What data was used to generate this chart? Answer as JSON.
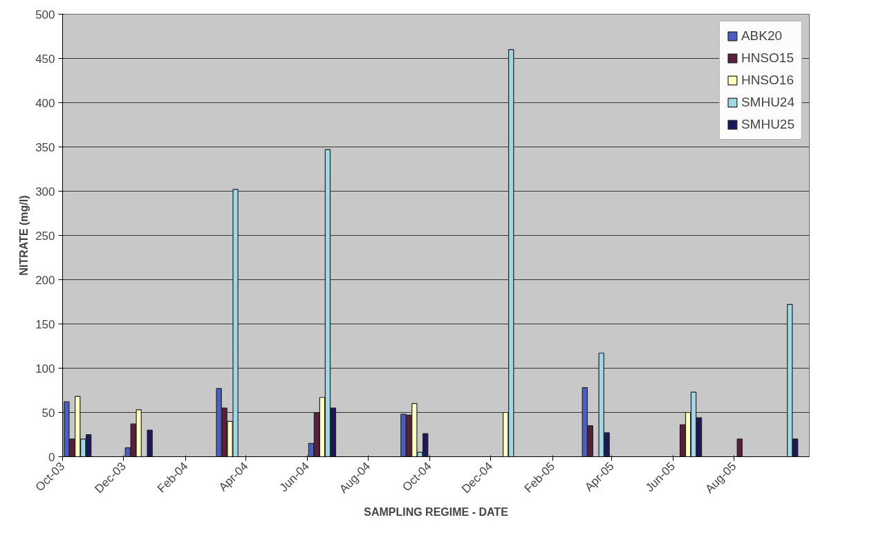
{
  "chart_data": {
    "type": "bar",
    "xlabel": "SAMPLING REGIME - DATE",
    "ylabel": "NITRATE (mg/l)",
    "x": [
      "2003-10-16",
      "2003-12-16",
      "2004-03-16",
      "2004-06-16",
      "2004-09-16",
      "2004-12-16",
      "2005-03-16",
      "2005-06-16",
      "2005-08-12",
      "2005-09-20"
    ],
    "series": [
      {
        "name": "ABK20",
        "color": "#4a5fbf",
        "values": [
          62,
          10,
          77,
          15,
          48,
          null,
          78,
          null,
          null,
          null
        ]
      },
      {
        "name": "HNSO15",
        "color": "#5a1f3a",
        "values": [
          20,
          37,
          55,
          50,
          47,
          null,
          35,
          36,
          20,
          null
        ]
      },
      {
        "name": "HNSO16",
        "color": "#ffffc0",
        "values": [
          68,
          53,
          40,
          67,
          60,
          50,
          null,
          50,
          null,
          null
        ]
      },
      {
        "name": "SMHU24",
        "color": "#a0d8e8",
        "values": [
          20,
          null,
          302,
          347,
          5,
          460,
          117,
          73,
          null,
          172
        ]
      },
      {
        "name": "SMHU25",
        "color": "#1a1a5a",
        "values": [
          25,
          30,
          null,
          55,
          26,
          null,
          27,
          44,
          null,
          20
        ]
      }
    ],
    "xlim": [
      "2003-10-01",
      "2005-10-15"
    ],
    "xticks": [
      {
        "value": "2003-10",
        "label": "Oct-03"
      },
      {
        "value": "2003-12",
        "label": "Dec-03"
      },
      {
        "value": "2004-02",
        "label": "Feb-04"
      },
      {
        "value": "2004-04",
        "label": "Apr-04"
      },
      {
        "value": "2004-06",
        "label": "Jun-04"
      },
      {
        "value": "2004-08",
        "label": "Aug-04"
      },
      {
        "value": "2004-10",
        "label": "Oct-04"
      },
      {
        "value": "2004-12",
        "label": "Dec-04"
      },
      {
        "value": "2005-02",
        "label": "Feb-05"
      },
      {
        "value": "2005-04",
        "label": "Apr-05"
      },
      {
        "value": "2005-06",
        "label": "Jun-05"
      },
      {
        "value": "2005-08",
        "label": "Aug-05"
      }
    ],
    "ylim": [
      0,
      500
    ],
    "yticks": [
      0,
      50,
      100,
      150,
      200,
      250,
      300,
      350,
      400,
      450,
      500
    ],
    "grid": "y",
    "legend": "top right"
  }
}
